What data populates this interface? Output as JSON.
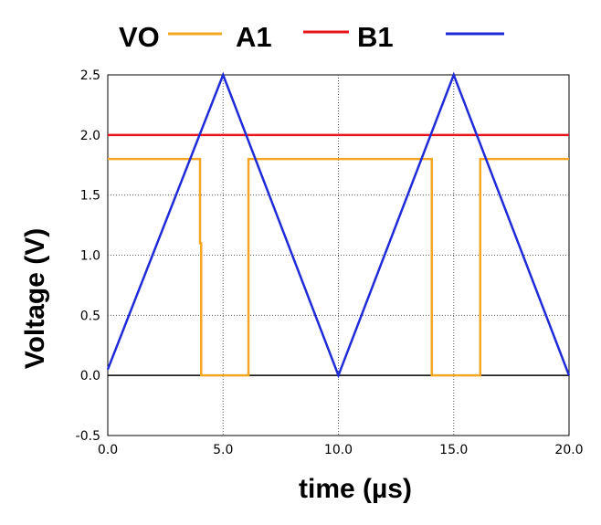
{
  "chart_data": {
    "type": "line",
    "title": "",
    "xlabel": "time (µs)",
    "ylabel": "Voltage  (V)",
    "xlim": [
      0,
      20
    ],
    "ylim": [
      -0.5,
      2.5
    ],
    "x_ticks": [
      "0.0",
      "5.0",
      "10.0",
      "15.0",
      "20.0"
    ],
    "y_ticks": [
      "-0.5",
      "0.0",
      "0.5",
      "1.0",
      "1.5",
      "2.0",
      "2.5"
    ],
    "grid": true,
    "legend_position": "top",
    "legend_labels": [
      "VO",
      "A1",
      "B1"
    ],
    "series": [
      {
        "color": "#f5a623",
        "x": [
          0,
          4.0,
          4.0,
          4.05,
          4.05,
          6.1,
          6.1,
          14.05,
          14.05,
          16.15,
          16.15,
          20
        ],
        "y": [
          1.8,
          1.8,
          1.1,
          1.1,
          0.0,
          0.0,
          1.8,
          1.8,
          0.0,
          0.0,
          1.8,
          1.8
        ]
      },
      {
        "color": "#e8151b",
        "x": [
          0,
          20
        ],
        "y": [
          2.0,
          2.0
        ]
      },
      {
        "color": "#1f2bd6",
        "x": [
          0,
          5,
          10,
          15,
          20
        ],
        "y": [
          0.05,
          2.5,
          0.0,
          2.5,
          0.0
        ]
      }
    ]
  }
}
